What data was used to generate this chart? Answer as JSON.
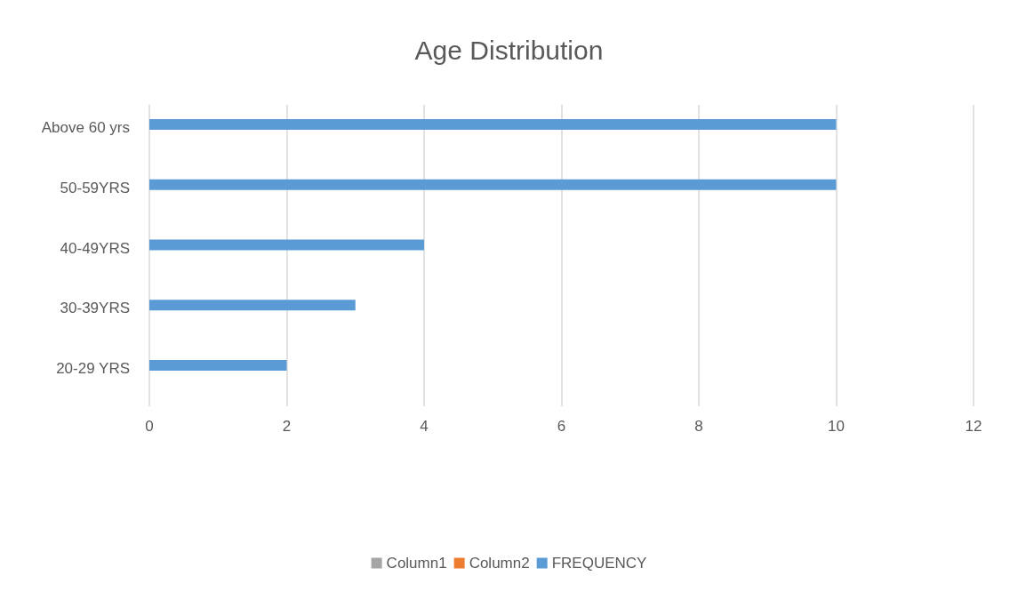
{
  "chart_data": {
    "type": "bar",
    "orientation": "horizontal",
    "title": "Age Distribution",
    "categories": [
      "Above 60 yrs",
      "50-59YRS",
      "40-49YRS",
      "30-39YRS",
      "20-29 YRS"
    ],
    "series": [
      {
        "name": "Column1",
        "color": "#a5a5a5",
        "values": [
          null,
          null,
          null,
          null,
          null
        ]
      },
      {
        "name": "Column2",
        "color": "#ed7d31",
        "values": [
          null,
          null,
          null,
          null,
          null
        ]
      },
      {
        "name": "FREQUENCY",
        "color": "#5b9bd5",
        "values": [
          10,
          10,
          4,
          3,
          2
        ]
      }
    ],
    "xlim": [
      0,
      12
    ],
    "xticks": [
      0,
      2,
      4,
      6,
      8,
      10,
      12
    ],
    "grid": "x",
    "legend": "bottom"
  }
}
